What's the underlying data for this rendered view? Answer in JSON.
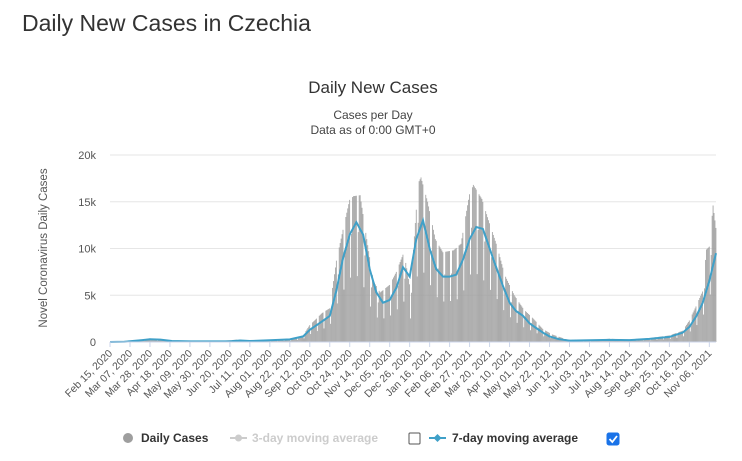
{
  "page": {
    "title": "Daily New Cases in Czechia"
  },
  "colors": {
    "bars": "#9e9e9e",
    "ma7": "#3fa0c8",
    "ma3": "#cccccc"
  },
  "legend": {
    "daily": "Daily Cases",
    "ma3": "3-day moving average",
    "ma7": "7-day moving average",
    "ma3_checked": false,
    "ma7_checked": true
  },
  "chart_data": {
    "type": "bar",
    "title": "Daily New Cases",
    "subtitle": "Cases per Day",
    "subtitle2": "Data as of 0:00 GMT+0",
    "ylabel": "Novel Coronavirus Daily Cases",
    "ylim": [
      0,
      20000
    ],
    "y_ticks": [
      0,
      5000,
      10000,
      15000,
      20000
    ],
    "y_tick_labels": [
      "0",
      "5k",
      "10k",
      "15k",
      "20k"
    ],
    "x_start": "2020-02-15",
    "x_end": "2021-11-13",
    "x_tick_labels": [
      "Feb 15, 2020",
      "Mar 07, 2020",
      "Mar 28, 2020",
      "Apr 18, 2020",
      "May 09, 2020",
      "May 30, 2020",
      "Jun 20, 2020",
      "Jul 11, 2020",
      "Aug 01, 2020",
      "Aug 22, 2020",
      "Sep 12, 2020",
      "Oct 03, 2020",
      "Oct 24, 2020",
      "Nov 14, 2020",
      "Dec 05, 2020",
      "Dec 26, 2020",
      "Jan 16, 2021",
      "Feb 06, 2021",
      "Feb 27, 2021",
      "Mar 20, 2021",
      "Apr 10, 2021",
      "May 01, 2021",
      "May 22, 2021",
      "Jun 12, 2021",
      "Jul 03, 2021",
      "Jul 24, 2021",
      "Aug 14, 2021",
      "Sep 04, 2021",
      "Sep 25, 2021",
      "Oct 16, 2021",
      "Nov 06, 2021"
    ],
    "grid": true,
    "legend_position": "bottom",
    "series": [
      {
        "name": "7-day moving average",
        "points": [
          [
            "2020-02-15",
            0
          ],
          [
            "2020-03-01",
            20
          ],
          [
            "2020-03-20",
            200
          ],
          [
            "2020-03-28",
            290
          ],
          [
            "2020-04-08",
            260
          ],
          [
            "2020-04-20",
            110
          ],
          [
            "2020-05-10",
            60
          ],
          [
            "2020-06-01",
            60
          ],
          [
            "2020-06-20",
            90
          ],
          [
            "2020-07-01",
            160
          ],
          [
            "2020-07-11",
            110
          ],
          [
            "2020-08-01",
            180
          ],
          [
            "2020-08-22",
            280
          ],
          [
            "2020-09-05",
            600
          ],
          [
            "2020-09-12",
            1300
          ],
          [
            "2020-09-25",
            2200
          ],
          [
            "2020-10-03",
            2800
          ],
          [
            "2020-10-10",
            5500
          ],
          [
            "2020-10-17",
            9000
          ],
          [
            "2020-10-24",
            11500
          ],
          [
            "2020-10-31",
            12800
          ],
          [
            "2020-11-07",
            11500
          ],
          [
            "2020-11-14",
            7800
          ],
          [
            "2020-11-21",
            5300
          ],
          [
            "2020-11-28",
            4200
          ],
          [
            "2020-12-05",
            4500
          ],
          [
            "2020-12-12",
            5800
          ],
          [
            "2020-12-19",
            8000
          ],
          [
            "2020-12-26",
            7000
          ],
          [
            "2021-01-02",
            11000
          ],
          [
            "2021-01-09",
            13000
          ],
          [
            "2021-01-16",
            10000
          ],
          [
            "2021-01-23",
            7800
          ],
          [
            "2021-01-30",
            7000
          ],
          [
            "2021-02-06",
            7000
          ],
          [
            "2021-02-13",
            7200
          ],
          [
            "2021-02-20",
            8800
          ],
          [
            "2021-02-27",
            11000
          ],
          [
            "2021-03-06",
            12300
          ],
          [
            "2021-03-13",
            12100
          ],
          [
            "2021-03-20",
            10000
          ],
          [
            "2021-03-27",
            8000
          ],
          [
            "2021-04-03",
            6000
          ],
          [
            "2021-04-10",
            4200
          ],
          [
            "2021-04-17",
            3300
          ],
          [
            "2021-04-24",
            2800
          ],
          [
            "2021-05-01",
            2000
          ],
          [
            "2021-05-08",
            1500
          ],
          [
            "2021-05-15",
            1000
          ],
          [
            "2021-05-22",
            600
          ],
          [
            "2021-06-01",
            300
          ],
          [
            "2021-06-12",
            150
          ],
          [
            "2021-07-03",
            180
          ],
          [
            "2021-07-24",
            220
          ],
          [
            "2021-08-14",
            200
          ],
          [
            "2021-09-04",
            330
          ],
          [
            "2021-09-25",
            550
          ],
          [
            "2021-10-09",
            1000
          ],
          [
            "2021-10-16",
            1600
          ],
          [
            "2021-10-23",
            2700
          ],
          [
            "2021-10-30",
            4200
          ],
          [
            "2021-11-06",
            6500
          ],
          [
            "2021-11-13",
            9500
          ]
        ]
      }
    ],
    "daily_points": [
      [
        "2020-02-15",
        0
      ],
      [
        "2020-03-01",
        5
      ],
      [
        "2020-03-15",
        150
      ],
      [
        "2020-03-28",
        390
      ],
      [
        "2020-04-10",
        250
      ],
      [
        "2020-05-01",
        80
      ],
      [
        "2020-06-01",
        60
      ],
      [
        "2020-06-28",
        250
      ],
      [
        "2020-07-15",
        130
      ],
      [
        "2020-08-05",
        180
      ],
      [
        "2020-08-25",
        320
      ],
      [
        "2020-09-05",
        700
      ],
      [
        "2020-09-12",
        1800
      ],
      [
        "2020-09-25",
        3100
      ],
      [
        "2020-10-03",
        3600
      ],
      [
        "2020-10-10",
        8700
      ],
      [
        "2020-10-17",
        12000
      ],
      [
        "2020-10-24",
        15200
      ],
      [
        "2020-10-28",
        15600
      ],
      [
        "2020-11-04",
        15700
      ],
      [
        "2020-11-11",
        11000
      ],
      [
        "2020-11-18",
        6500
      ],
      [
        "2020-11-25",
        5300
      ],
      [
        "2020-12-05",
        6100
      ],
      [
        "2020-12-12",
        7500
      ],
      [
        "2020-12-20",
        9600
      ],
      [
        "2020-12-27",
        5600
      ],
      [
        "2021-01-04",
        17000
      ],
      [
        "2021-01-07",
        17600
      ],
      [
        "2021-01-14",
        15000
      ],
      [
        "2021-01-22",
        11000
      ],
      [
        "2021-01-30",
        9600
      ],
      [
        "2021-02-10",
        9800
      ],
      [
        "2021-02-18",
        10500
      ],
      [
        "2021-02-27",
        15800
      ],
      [
        "2021-03-03",
        16800
      ],
      [
        "2021-03-12",
        15300
      ],
      [
        "2021-03-20",
        12700
      ],
      [
        "2021-03-28",
        10200
      ],
      [
        "2021-04-05",
        7200
      ],
      [
        "2021-04-15",
        5000
      ],
      [
        "2021-04-25",
        3500
      ],
      [
        "2021-05-05",
        2500
      ],
      [
        "2021-05-15",
        1400
      ],
      [
        "2021-05-25",
        800
      ],
      [
        "2021-06-10",
        250
      ],
      [
        "2021-07-01",
        150
      ],
      [
        "2021-07-24",
        350
      ],
      [
        "2021-08-14",
        250
      ],
      [
        "2021-09-04",
        420
      ],
      [
        "2021-09-25",
        700
      ],
      [
        "2021-10-09",
        1200
      ],
      [
        "2021-10-16",
        2300
      ],
      [
        "2021-10-23",
        3800
      ],
      [
        "2021-10-30",
        5400
      ],
      [
        "2021-11-03",
        9900
      ],
      [
        "2021-11-06",
        10200
      ],
      [
        "2021-11-10",
        14600
      ],
      [
        "2021-11-13",
        12200
      ]
    ]
  }
}
